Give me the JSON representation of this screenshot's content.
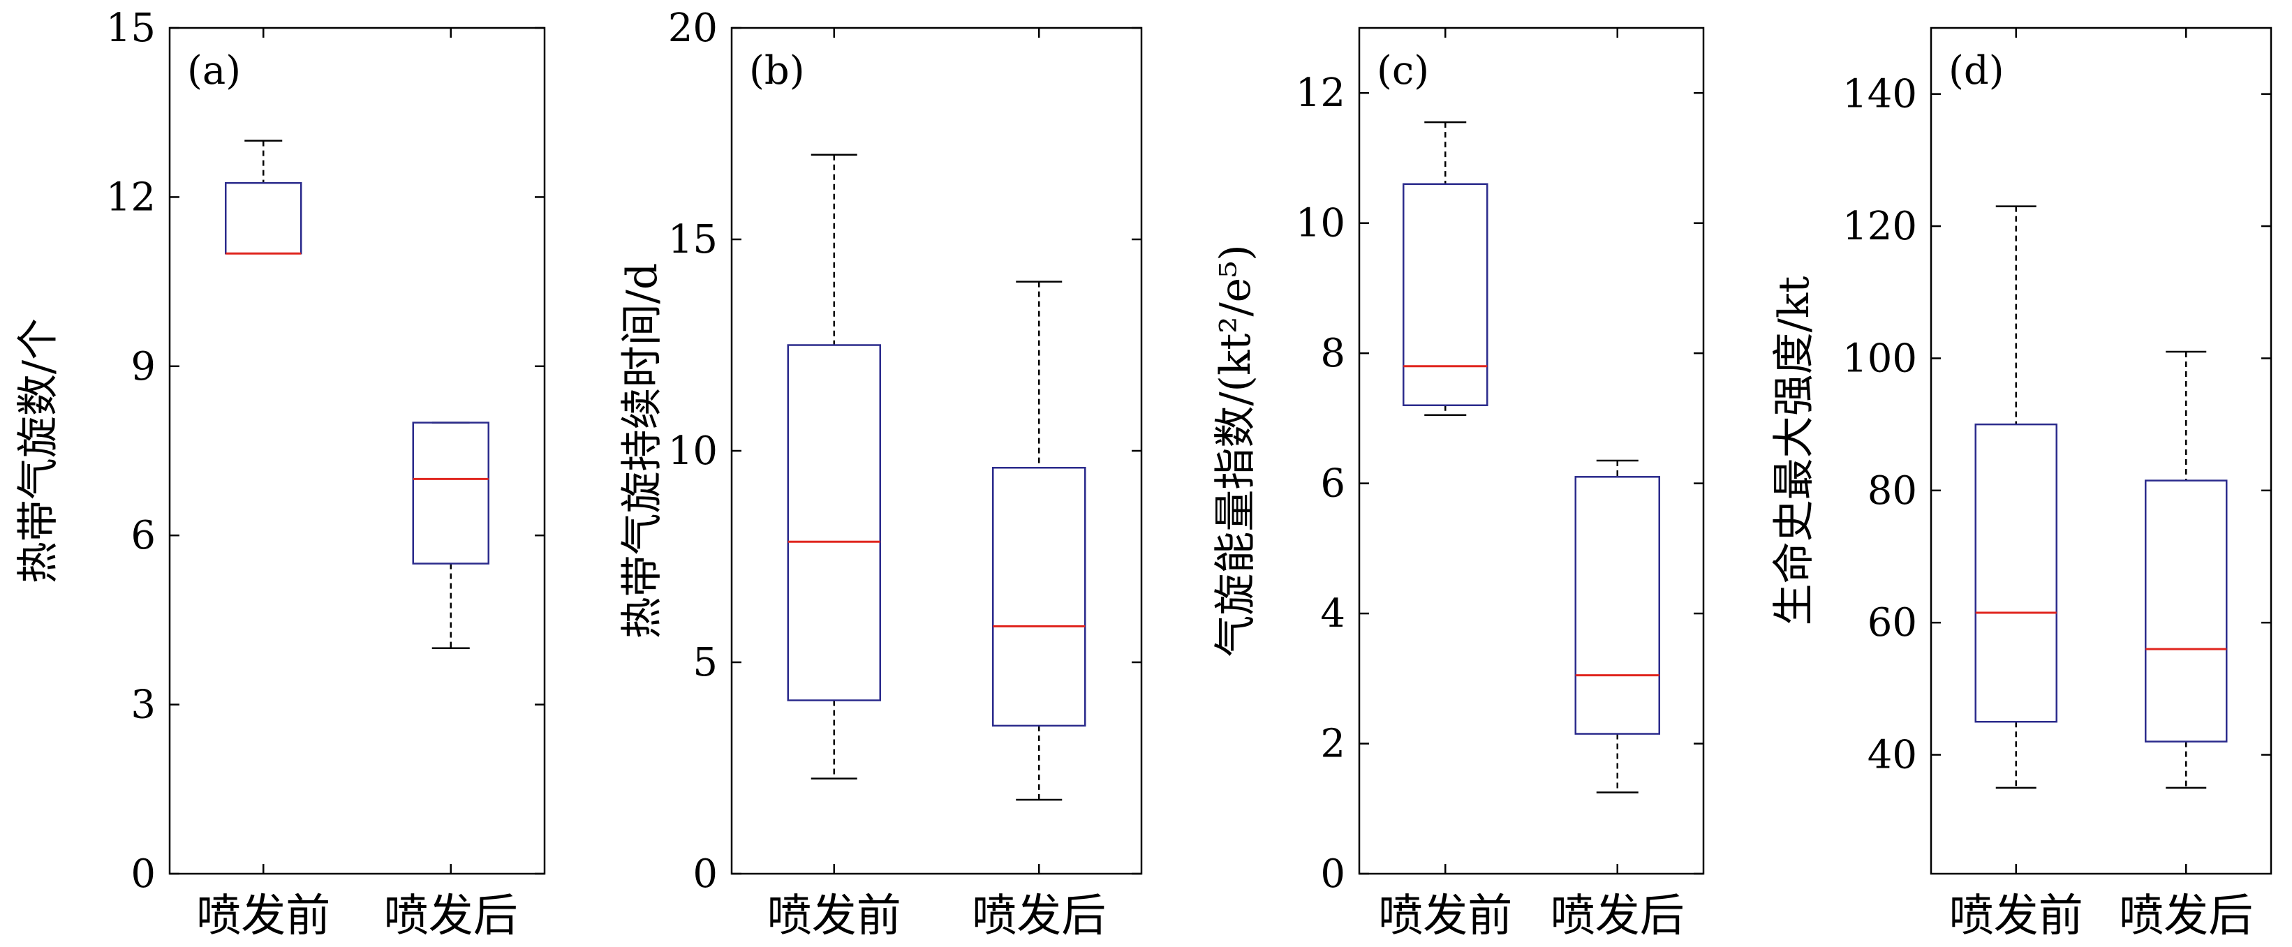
{
  "chart_data": [
    {
      "type": "box",
      "panel_label": "(a)",
      "ylabel": "热带气旋数/个",
      "ylim": [
        0,
        15
      ],
      "yticks": [
        0,
        3,
        6,
        9,
        12,
        15
      ],
      "categories": [
        "喷发前",
        "喷发后"
      ],
      "boxes": [
        {
          "whisker_low": 11,
          "q1": 11,
          "median": 11,
          "q3": 12.25,
          "whisker_high": 13
        },
        {
          "whisker_low": 4,
          "q1": 5.5,
          "median": 7,
          "q3": 8,
          "whisker_high": 8
        }
      ]
    },
    {
      "type": "box",
      "panel_label": "(b)",
      "ylabel": "热带气旋持续时间/d",
      "ylim": [
        0,
        20
      ],
      "yticks": [
        0,
        5,
        10,
        15,
        20
      ],
      "categories": [
        "喷发前",
        "喷发后"
      ],
      "boxes": [
        {
          "whisker_low": 2.25,
          "q1": 4.1,
          "median": 7.85,
          "q3": 12.5,
          "whisker_high": 17
        },
        {
          "whisker_low": 1.75,
          "q1": 3.5,
          "median": 5.85,
          "q3": 9.6,
          "whisker_high": 14
        }
      ]
    },
    {
      "type": "box",
      "panel_label": "(c)",
      "ylabel": "气旋能量指数/(kt²/e⁵)",
      "ylim": [
        0,
        13
      ],
      "yticks": [
        0,
        2,
        4,
        6,
        8,
        10,
        12
      ],
      "categories": [
        "喷发前",
        "喷发后"
      ],
      "boxes": [
        {
          "whisker_low": 7.05,
          "q1": 7.2,
          "median": 7.8,
          "q3": 10.6,
          "whisker_high": 11.55
        },
        {
          "whisker_low": 1.25,
          "q1": 2.15,
          "median": 3.05,
          "q3": 6.1,
          "whisker_high": 6.35
        }
      ]
    },
    {
      "type": "box",
      "panel_label": "(d)",
      "ylabel": "生命史最大强度/kt",
      "ylim": [
        22,
        150
      ],
      "yticks": [
        40,
        60,
        80,
        100,
        120,
        140
      ],
      "categories": [
        "喷发前",
        "喷发后"
      ],
      "boxes": [
        {
          "whisker_low": 35,
          "q1": 45,
          "median": 61.5,
          "q3": 90,
          "whisker_high": 123
        },
        {
          "whisker_low": 35,
          "q1": 42,
          "median": 56,
          "q3": 81.5,
          "whisker_high": 101
        }
      ]
    }
  ],
  "colors": {
    "box": "#2b2b8c",
    "median": "#e0261f",
    "whisker": "#000000",
    "axes": "#000000"
  }
}
